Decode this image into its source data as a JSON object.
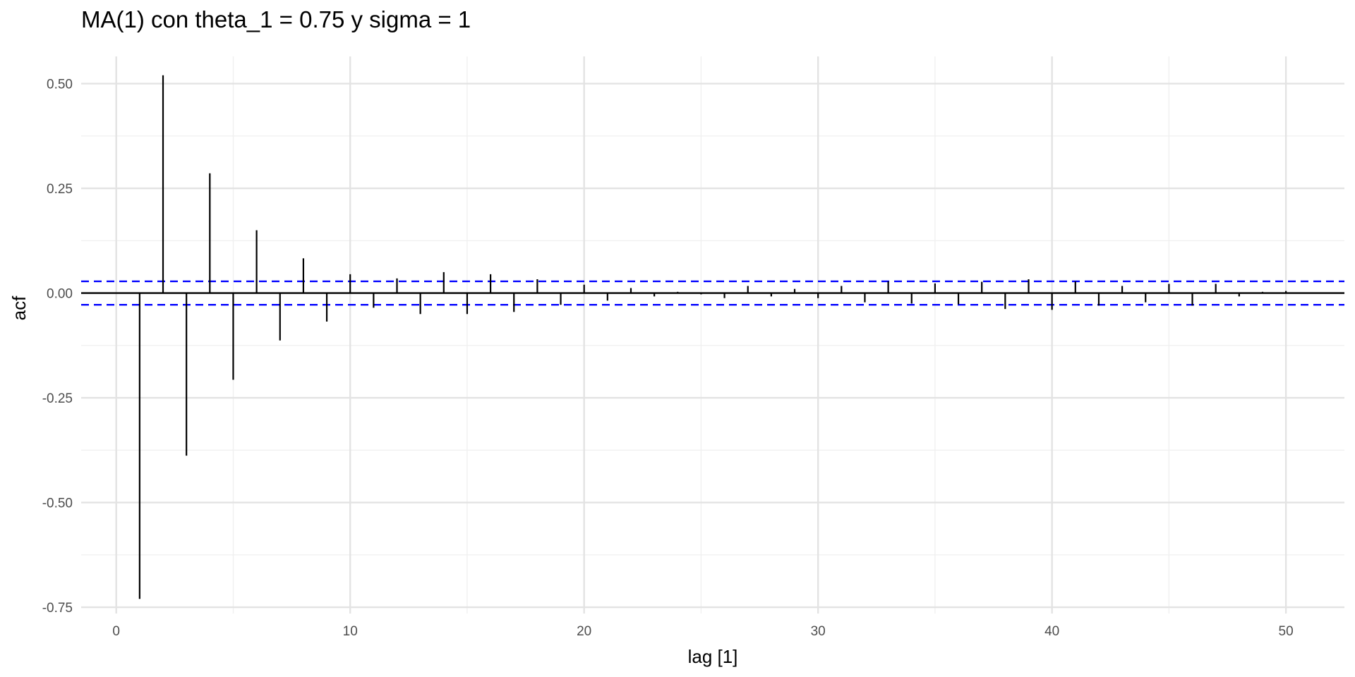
{
  "chart_data": {
    "type": "bar",
    "subtype": "acf-lollipop",
    "title": "MA(1) con theta_1 = 0.75 y sigma = 1",
    "xlabel": "lag [1]",
    "ylabel": "acf",
    "xlim": [
      -1.5,
      52.5
    ],
    "ylim": [
      -0.765,
      0.565
    ],
    "x_ticks": [
      0,
      10,
      20,
      30,
      40,
      50
    ],
    "x_tick_labels": [
      "0",
      "10",
      "20",
      "30",
      "40",
      "50"
    ],
    "x_minor_ticks": [
      5,
      15,
      25,
      35,
      45
    ],
    "y_ticks": [
      0.5,
      0.25,
      0,
      -0.25,
      -0.5,
      -0.75
    ],
    "y_tick_labels": [
      "0.50",
      "0.25",
      "0.00",
      "-0.25",
      "-0.50",
      "-0.75"
    ],
    "y_minor_ticks": [
      0.375,
      0.125,
      -0.125,
      -0.375,
      -0.625
    ],
    "grid": true,
    "confidence_bounds": [
      0.028,
      -0.028
    ],
    "colors": {
      "bars": "#000000",
      "bounds": "#0000ff",
      "grid": "#e3e3e3"
    },
    "lags": [
      1,
      2,
      3,
      4,
      5,
      6,
      7,
      8,
      9,
      10,
      11,
      12,
      13,
      14,
      15,
      16,
      17,
      18,
      19,
      20,
      21,
      22,
      23,
      24,
      25,
      26,
      27,
      28,
      29,
      30,
      31,
      32,
      33,
      34,
      35,
      36,
      37,
      38,
      39,
      40,
      41,
      42,
      43,
      44,
      45,
      46,
      47,
      48,
      49,
      50
    ],
    "values": [
      -0.73,
      0.52,
      -0.388,
      0.286,
      -0.207,
      0.15,
      -0.113,
      0.083,
      -0.068,
      0.045,
      -0.035,
      0.035,
      -0.05,
      0.05,
      -0.05,
      0.045,
      -0.045,
      0.033,
      -0.028,
      0.02,
      -0.018,
      0.012,
      -0.008,
      0.003,
      -0.003,
      -0.012,
      0.017,
      -0.008,
      0.01,
      -0.012,
      0.017,
      -0.022,
      0.028,
      -0.025,
      0.023,
      -0.027,
      0.027,
      -0.038,
      0.033,
      -0.04,
      0.028,
      -0.03,
      0.017,
      -0.022,
      0.022,
      -0.03,
      0.022,
      -0.008,
      0.003,
      0.005
    ]
  }
}
